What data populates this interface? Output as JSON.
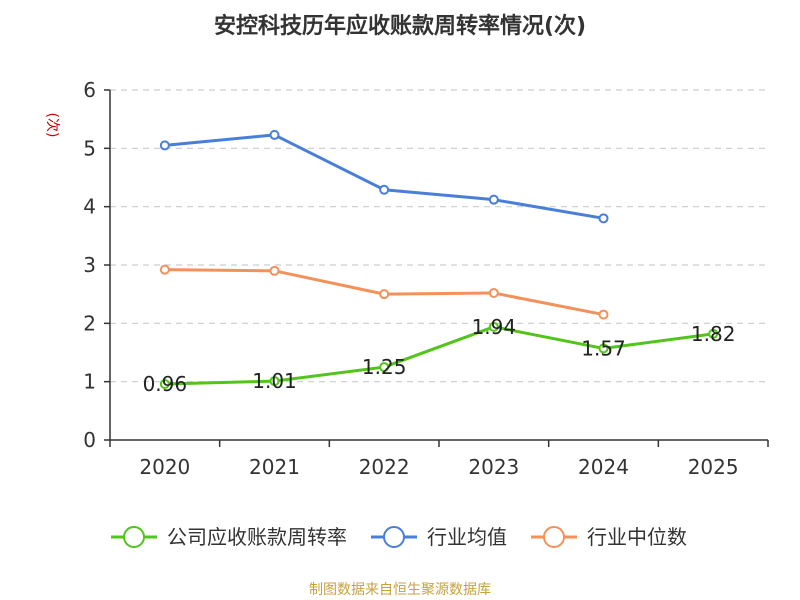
{
  "chart_data": {
    "type": "line",
    "title": "安控科技历年应收账款周转率情况(次)",
    "ylabel": "(次)",
    "xlabel": "",
    "categories": [
      "2020",
      "2021",
      "2022",
      "2023",
      "2024",
      "2025"
    ],
    "ylim": [
      0,
      6
    ],
    "yticks": [
      0,
      1,
      2,
      3,
      4,
      5,
      6
    ],
    "grid": true,
    "legend_position": "bottom",
    "series": [
      {
        "name": "公司应收账款周转率",
        "color": "#52c41a",
        "values": [
          0.96,
          1.01,
          1.25,
          1.94,
          1.57,
          1.82
        ],
        "labels": [
          "0.96",
          "1.01",
          "1.25",
          "1.94",
          "1.57",
          "1.82"
        ]
      },
      {
        "name": "行业均值",
        "color": "#4a7fd9",
        "values": [
          5.05,
          5.23,
          4.29,
          4.12,
          3.8,
          null
        ]
      },
      {
        "name": "行业中位数",
        "color": "#f4915a",
        "values": [
          2.92,
          2.9,
          2.5,
          2.52,
          2.15,
          null
        ]
      }
    ],
    "source": "制图数据来自恒生聚源数据库",
    "colors": {
      "axis": "#333333",
      "grid": "#cccccc",
      "ylabel": "#cc0000",
      "source": "#c8a040"
    }
  }
}
